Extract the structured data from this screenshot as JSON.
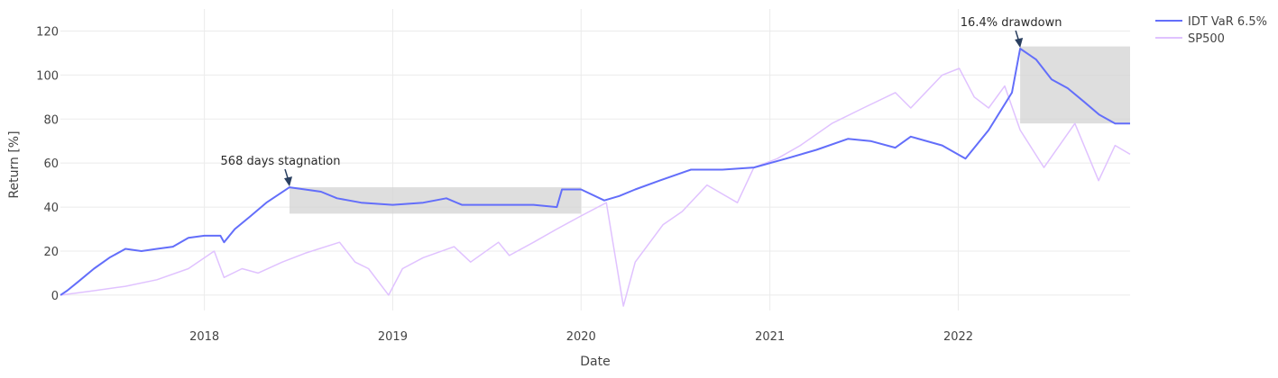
{
  "chart_data": {
    "type": "line",
    "xlabel": "Date",
    "ylabel": "Return [%]",
    "xlim": [
      "2017-03-28",
      "2022-11-30"
    ],
    "ylim": [
      -7,
      130
    ],
    "x_ticks": [
      "2018",
      "2019",
      "2020",
      "2021",
      "2022"
    ],
    "y_ticks": [
      0,
      20,
      40,
      60,
      80,
      100,
      120
    ],
    "grid": true,
    "legend": "top-right",
    "series": [
      {
        "name": "IDT VaR 6.5%",
        "color": "#636efa",
        "points": [
          [
            "2017-03-28",
            0
          ],
          [
            "2017-04-10",
            2
          ],
          [
            "2017-05-01",
            6
          ],
          [
            "2017-06-01",
            12
          ],
          [
            "2017-07-01",
            17
          ],
          [
            "2017-08-01",
            21
          ],
          [
            "2017-09-01",
            20
          ],
          [
            "2017-10-01",
            21
          ],
          [
            "2017-11-01",
            22
          ],
          [
            "2017-12-01",
            26
          ],
          [
            "2018-01-01",
            27
          ],
          [
            "2018-02-01",
            27
          ],
          [
            "2018-02-08",
            24
          ],
          [
            "2018-03-01",
            30
          ],
          [
            "2018-04-01",
            36
          ],
          [
            "2018-05-01",
            42
          ],
          [
            "2018-06-15",
            49
          ],
          [
            "2018-07-15",
            48
          ],
          [
            "2018-08-15",
            47
          ],
          [
            "2018-09-15",
            44
          ],
          [
            "2018-11-01",
            42
          ],
          [
            "2019-01-01",
            41
          ],
          [
            "2019-03-01",
            42
          ],
          [
            "2019-04-15",
            44
          ],
          [
            "2019-05-15",
            41
          ],
          [
            "2019-07-01",
            41
          ],
          [
            "2019-10-01",
            41
          ],
          [
            "2019-11-15",
            40
          ],
          [
            "2019-11-25",
            48
          ],
          [
            "2020-01-01",
            48
          ],
          [
            "2020-02-15",
            43
          ],
          [
            "2020-03-15",
            45
          ],
          [
            "2020-04-15",
            48
          ],
          [
            "2020-06-01",
            52
          ],
          [
            "2020-08-01",
            57
          ],
          [
            "2020-10-01",
            57
          ],
          [
            "2020-12-01",
            58
          ],
          [
            "2021-02-01",
            62
          ],
          [
            "2021-04-01",
            66
          ],
          [
            "2021-06-01",
            71
          ],
          [
            "2021-07-15",
            70
          ],
          [
            "2021-09-01",
            67
          ],
          [
            "2021-10-01",
            72
          ],
          [
            "2021-12-01",
            68
          ],
          [
            "2022-01-15",
            62
          ],
          [
            "2022-03-01",
            75
          ],
          [
            "2022-04-15",
            92
          ],
          [
            "2022-05-01",
            112
          ],
          [
            "2022-06-01",
            107
          ],
          [
            "2022-07-01",
            98
          ],
          [
            "2022-08-01",
            94
          ],
          [
            "2022-09-01",
            88
          ],
          [
            "2022-10-01",
            82
          ],
          [
            "2022-11-01",
            78
          ],
          [
            "2022-11-30",
            78
          ]
        ]
      },
      {
        "name": "SP500",
        "color": "#e0c2ff",
        "points": [
          [
            "2017-03-28",
            0
          ],
          [
            "2017-05-01",
            1
          ],
          [
            "2017-06-01",
            2
          ],
          [
            "2017-08-01",
            4
          ],
          [
            "2017-10-01",
            7
          ],
          [
            "2017-12-01",
            12
          ],
          [
            "2018-01-20",
            20
          ],
          [
            "2018-02-08",
            8
          ],
          [
            "2018-03-15",
            12
          ],
          [
            "2018-04-15",
            10
          ],
          [
            "2018-06-01",
            15
          ],
          [
            "2018-07-15",
            19
          ],
          [
            "2018-09-20",
            24
          ],
          [
            "2018-10-20",
            15
          ],
          [
            "2018-11-15",
            12
          ],
          [
            "2018-12-24",
            0
          ],
          [
            "2019-01-20",
            12
          ],
          [
            "2019-03-01",
            17
          ],
          [
            "2019-04-30",
            22
          ],
          [
            "2019-06-01",
            15
          ],
          [
            "2019-07-25",
            24
          ],
          [
            "2019-08-15",
            18
          ],
          [
            "2019-10-01",
            24
          ],
          [
            "2019-11-15",
            30
          ],
          [
            "2020-01-01",
            36
          ],
          [
            "2020-02-19",
            42
          ],
          [
            "2020-03-23",
            -5
          ],
          [
            "2020-04-15",
            15
          ],
          [
            "2020-06-08",
            32
          ],
          [
            "2020-07-15",
            38
          ],
          [
            "2020-09-01",
            50
          ],
          [
            "2020-10-30",
            42
          ],
          [
            "2020-12-01",
            58
          ],
          [
            "2021-01-15",
            62
          ],
          [
            "2021-03-01",
            68
          ],
          [
            "2021-05-01",
            78
          ],
          [
            "2021-07-01",
            85
          ],
          [
            "2021-09-01",
            92
          ],
          [
            "2021-10-01",
            85
          ],
          [
            "2021-12-01",
            100
          ],
          [
            "2022-01-03",
            103
          ],
          [
            "2022-02-01",
            90
          ],
          [
            "2022-03-01",
            85
          ],
          [
            "2022-04-01",
            95
          ],
          [
            "2022-05-01",
            75
          ],
          [
            "2022-06-16",
            58
          ],
          [
            "2022-08-15",
            78
          ],
          [
            "2022-09-30",
            52
          ],
          [
            "2022-11-01",
            68
          ],
          [
            "2022-11-30",
            64
          ]
        ]
      }
    ],
    "shapes": [
      {
        "type": "rect",
        "x0": "2018-06-15",
        "x1": "2020-01-01",
        "y0": 37,
        "y1": 49,
        "color": "#d3d3d3"
      },
      {
        "type": "rect",
        "x0": "2022-05-01",
        "x1": "2022-11-30",
        "y0": 78,
        "y1": 113,
        "color": "#d3d3d3"
      }
    ],
    "annotations": [
      {
        "text": "568 days stagnation",
        "x": "2018-06-15",
        "y": 49
      },
      {
        "text": "16.4% drawdown",
        "x": "2022-05-01",
        "y": 112
      }
    ]
  }
}
